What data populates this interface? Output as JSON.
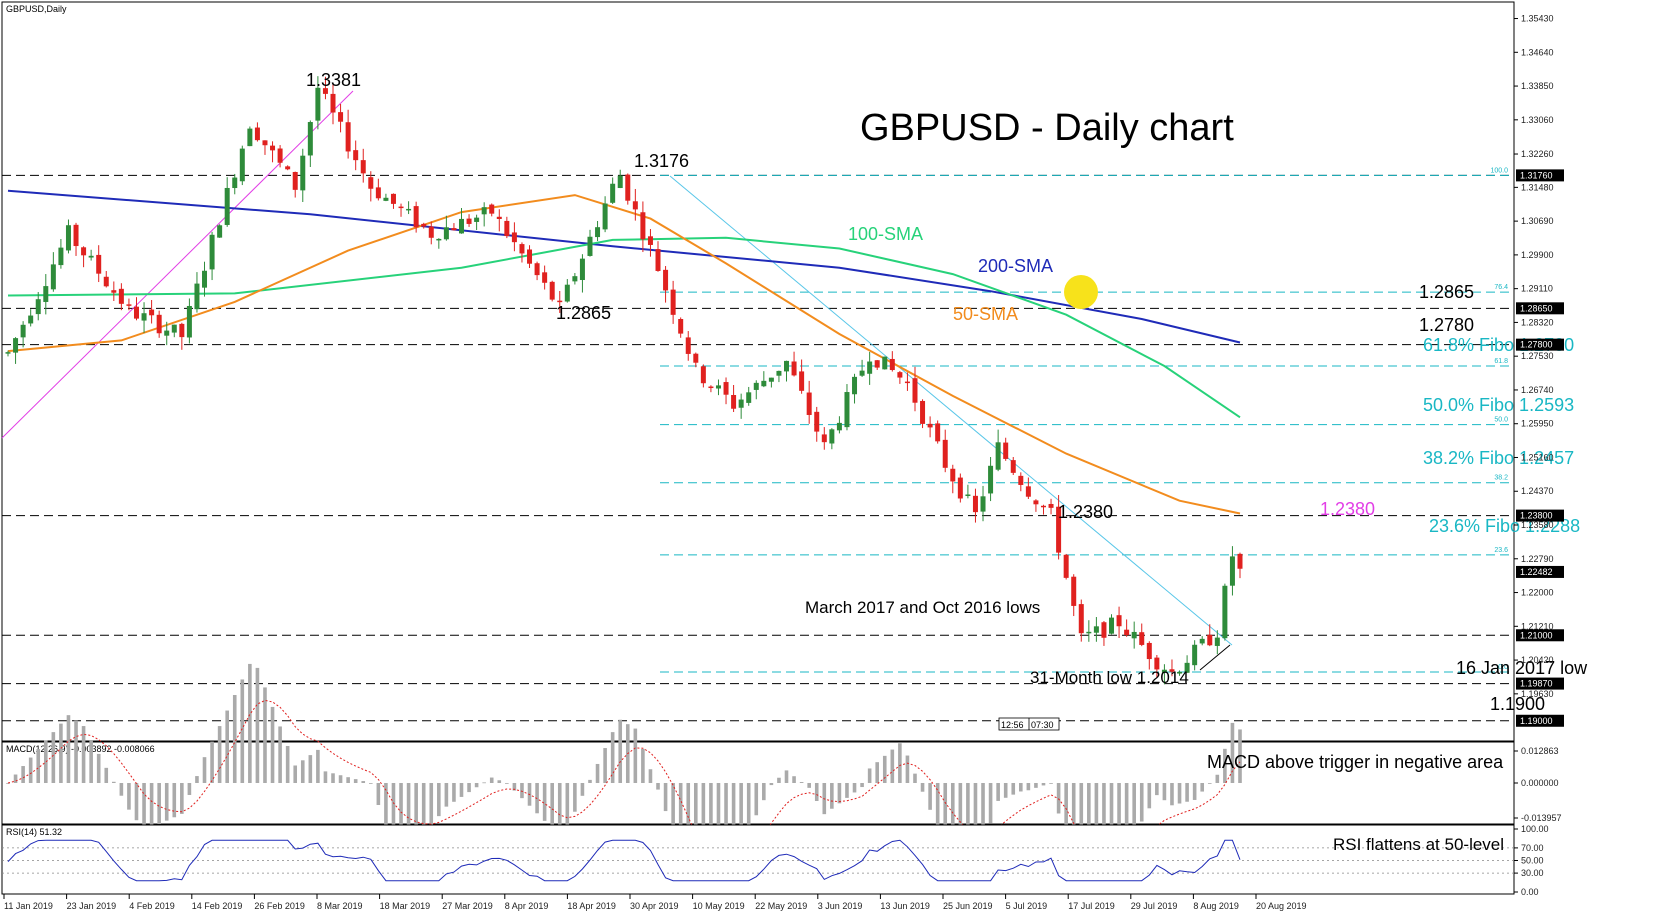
{
  "window_title": "GBPUSD,Daily",
  "main_title": "GBPUSD - Daily chart",
  "macd_title": "MACD(12,26,9) -0.003892 -0.008066",
  "rsi_title": "RSI(14) 51.32",
  "time_box": [
    "12:56",
    "07:30"
  ],
  "colors": {
    "bull_candle": "#2e8b3a",
    "bear_candle": "#e0211f",
    "sma50": "#f28c1e",
    "sma100": "#27d27a",
    "sma200": "#1f2bb8",
    "fibo": "#19b7c4",
    "trend_up": "#e23ee6",
    "trend_down": "#58c6e8",
    "rsi": "#1f2bb8",
    "macd_signal": "#e0211f",
    "macd_hist": "#aaaaaa",
    "highlight": "#f7e21b"
  },
  "chart_data": {
    "type": "candlestick",
    "instrument": "GBPUSD",
    "timeframe": "Daily",
    "x_tick_labels": [
      "11 Jan 2019",
      "23 Jan 2019",
      "4 Feb 2019",
      "14 Feb 2019",
      "26 Feb 2019",
      "8 Mar 2019",
      "18 Mar 2019",
      "27 Mar 2019",
      "8 Apr 2019",
      "18 Apr 2019",
      "30 Apr 2019",
      "10 May 2019",
      "22 May 2019",
      "3 Jun 2019",
      "13 Jun 2019",
      "25 Jun 2019",
      "5 Jul 2019",
      "17 Jul 2019",
      "29 Jul 2019",
      "8 Aug 2019",
      "20 Aug 2019"
    ],
    "y_tick_labels": [
      "1.35430",
      "1.34640",
      "1.33850",
      "1.33060",
      "1.32260",
      "1.31480",
      "1.30690",
      "1.29900",
      "1.29110",
      "1.28320",
      "1.27530",
      "1.26740",
      "1.25950",
      "1.25160",
      "1.24370",
      "1.23580",
      "1.22790",
      "1.22000",
      "1.21210",
      "1.20420",
      "1.19630"
    ],
    "ylim": [
      1.1855,
      1.3577
    ],
    "price_tags": [
      "1.31760",
      "1.28650",
      "1.27800",
      "1.23800",
      "1.22482",
      "1.21000",
      "1.19870",
      "1.19000"
    ],
    "current_price": 1.22482,
    "fibo_axis_labels": [
      "100.0",
      "76.4",
      "61.8",
      "50.0",
      "38.2",
      "23.6",
      "0.0"
    ],
    "sma_labels": [
      "100-SMA",
      "200-SMA",
      "50-SMA"
    ],
    "annotations": {
      "high_1": "1.3381",
      "high_2": "1.3176",
      "low_1": "1.2865",
      "low_2": "1.2380",
      "level_1": "1.2865",
      "level_2": "1.2780",
      "fibo_618": "61.8% Fibo 1.2730",
      "fibo_500": "50.0% Fibo 1.2593",
      "fibo_382": "38.2% Fibo 1.2457",
      "fibo_236": "23.6% Fibo 1.2288",
      "level_1238": "1.2380",
      "march_lows": "March 2017 and Oct 2016 lows",
      "month_low": "31-Month low 1.2014",
      "jan_low": "16 Jan 2017 low",
      "level_119": "1.1900"
    },
    "horizontal_levels": [
      1.3176,
      1.2865,
      1.278,
      1.238,
      1.21,
      1.1987,
      1.19
    ],
    "fibo_levels": [
      {
        "ratio": "100.0",
        "value": 1.3176
      },
      {
        "ratio": "76.4",
        "value": 1.2903
      },
      {
        "ratio": "61.8",
        "value": 1.273
      },
      {
        "ratio": "50.0",
        "value": 1.2593
      },
      {
        "ratio": "38.2",
        "value": 1.2457
      },
      {
        "ratio": "23.6",
        "value": 1.2288
      },
      {
        "ratio": "0.0",
        "value": 1.2014
      }
    ],
    "key_points": [
      {
        "date": "2019-03-13",
        "price": 1.3381,
        "label": "1.3381"
      },
      {
        "date": "2019-05-03",
        "price": 1.3176,
        "label": "1.3176"
      },
      {
        "date": "2019-04-25",
        "price": 1.2865,
        "label": "1.2865"
      },
      {
        "date": "2019-07-18",
        "price": 1.238,
        "label": "1.2380"
      },
      {
        "date": "2019-08-12",
        "price": 1.2014,
        "label": "31-Month low 1.2014"
      }
    ],
    "sma_points": {
      "sma200": [
        [
          0,
          1.314
        ],
        [
          40,
          1.3085
        ],
        [
          80,
          1.301
        ],
        [
          110,
          1.296
        ],
        [
          130,
          1.2905
        ],
        [
          150,
          1.284
        ],
        [
          163,
          1.2785
        ]
      ],
      "sma100": [
        [
          0,
          1.2895
        ],
        [
          30,
          1.29
        ],
        [
          60,
          1.296
        ],
        [
          80,
          1.3025
        ],
        [
          95,
          1.303
        ],
        [
          110,
          1.3005
        ],
        [
          125,
          1.2945
        ],
        [
          140,
          1.285
        ],
        [
          153,
          1.273
        ],
        [
          163,
          1.261
        ]
      ],
      "sma50": [
        [
          0,
          1.2765
        ],
        [
          15,
          1.279
        ],
        [
          30,
          1.288
        ],
        [
          45,
          1.3
        ],
        [
          60,
          1.309
        ],
        [
          75,
          1.313
        ],
        [
          85,
          1.3075
        ],
        [
          95,
          1.297
        ],
        [
          110,
          1.2805
        ],
        [
          125,
          1.266
        ],
        [
          140,
          1.2525
        ],
        [
          155,
          1.2415
        ],
        [
          163,
          1.2385
        ]
      ]
    },
    "macd": {
      "label": "MACD above trigger in negative area",
      "macd_value": -0.003892,
      "signal_value": -0.008066,
      "y_ticks": [
        "0.012863",
        "0.000000",
        "-0.013957"
      ]
    },
    "rsi": {
      "label": "RSI flattens at 50-level",
      "value": 51.32,
      "y_ticks": [
        "100.00",
        "70.00",
        "50.00",
        "30.00",
        "0.00"
      ],
      "levels": [
        70,
        50,
        30
      ]
    }
  }
}
